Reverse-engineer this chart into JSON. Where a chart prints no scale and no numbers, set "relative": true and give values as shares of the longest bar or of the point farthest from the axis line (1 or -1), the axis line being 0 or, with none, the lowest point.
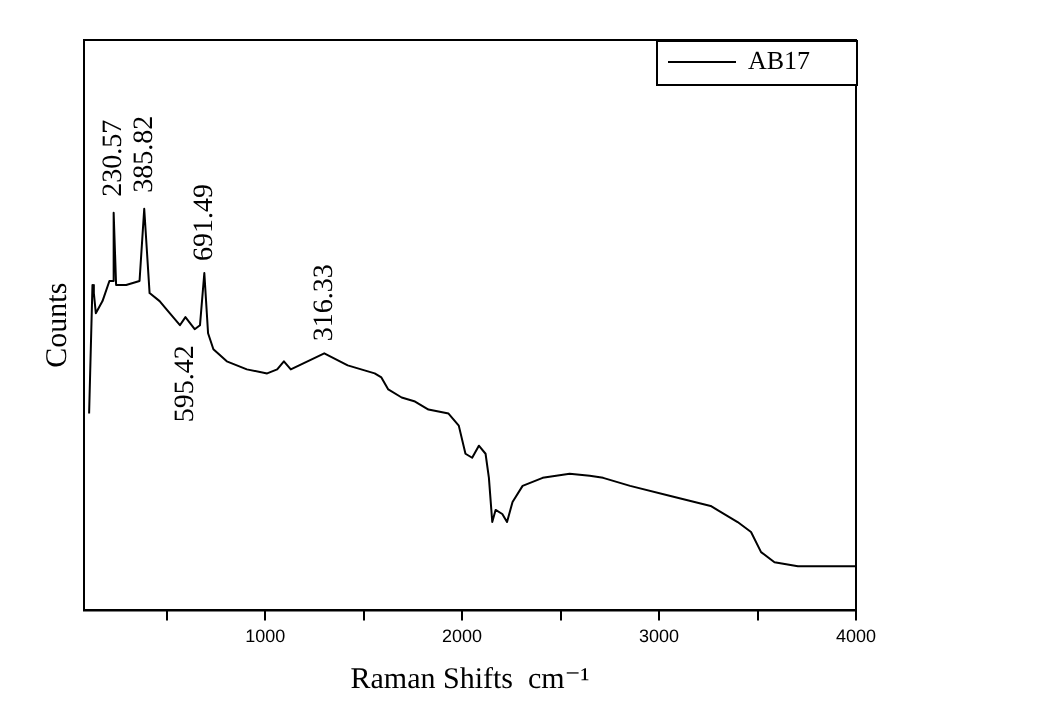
{
  "chart_data": {
    "type": "line",
    "relative": true,
    "xlabel": "Raman Shifts  cm⁻¹",
    "ylabel": "Counts",
    "xlim": [
      80,
      4000
    ],
    "xticks": [
      {
        "value": 500,
        "label": null
      },
      1000,
      {
        "value": 1500,
        "label": null
      },
      2000,
      {
        "value": 2500,
        "label": null
      },
      3000,
      {
        "value": 3500,
        "label": null
      },
      4000
    ],
    "tick_labels": "x",
    "grid": false,
    "legend": "top right",
    "marker": "none",
    "line_style": "solid",
    "series": [
      {
        "name": "AB17",
        "color": "#000000",
        "x": [
          106,
          123,
          130,
          140,
          174,
          209,
          225,
          230.57,
          243,
          294,
          362,
          385.82,
          413,
          464,
          498,
          567,
          595,
          642,
          669,
          691,
          710,
          737,
          805,
          907,
          1010,
          1061,
          1095,
          1130,
          1215,
          1300,
          1419,
          1556,
          1590,
          1625,
          1693,
          1761,
          1829,
          1931,
          1983,
          2017,
          2051,
          2085,
          2119,
          2136,
          2153,
          2170,
          2204,
          2228,
          2256,
          2307,
          2409,
          2546,
          2648,
          2716,
          2853,
          3058,
          3262,
          3399,
          3467,
          3518,
          3586,
          3705,
          4000
        ],
        "values": [
          0.49,
          0.81,
          0.79,
          0.74,
          0.77,
          0.82,
          0.82,
          0.99,
          0.81,
          0.81,
          0.82,
          1,
          0.79,
          0.77,
          0.75,
          0.71,
          0.73,
          0.7,
          0.71,
          0.84,
          0.69,
          0.65,
          0.62,
          0.6,
          0.59,
          0.6,
          0.62,
          0.6,
          0.62,
          0.64,
          0.61,
          0.59,
          0.58,
          0.55,
          0.53,
          0.52,
          0.5,
          0.49,
          0.46,
          0.39,
          0.38,
          0.41,
          0.39,
          0.33,
          0.22,
          0.25,
          0.24,
          0.22,
          0.27,
          0.31,
          0.33,
          0.34,
          0.335,
          0.33,
          0.31,
          0.285,
          0.26,
          0.22,
          0.195,
          0.145,
          0.12,
          0.11,
          0.11
        ]
      }
    ],
    "annotations": [
      {
        "text": "230.57",
        "x": 230.57,
        "y": 1.0
      },
      {
        "text": "385.82",
        "x": 385.82,
        "y": 1.01
      },
      {
        "text": "691.49",
        "x": 691,
        "y": 0.84
      },
      {
        "text": "595.42",
        "x": 595,
        "y": 0.73
      },
      {
        "text": "316.33",
        "x": 1300,
        "y": 0.64
      }
    ]
  }
}
